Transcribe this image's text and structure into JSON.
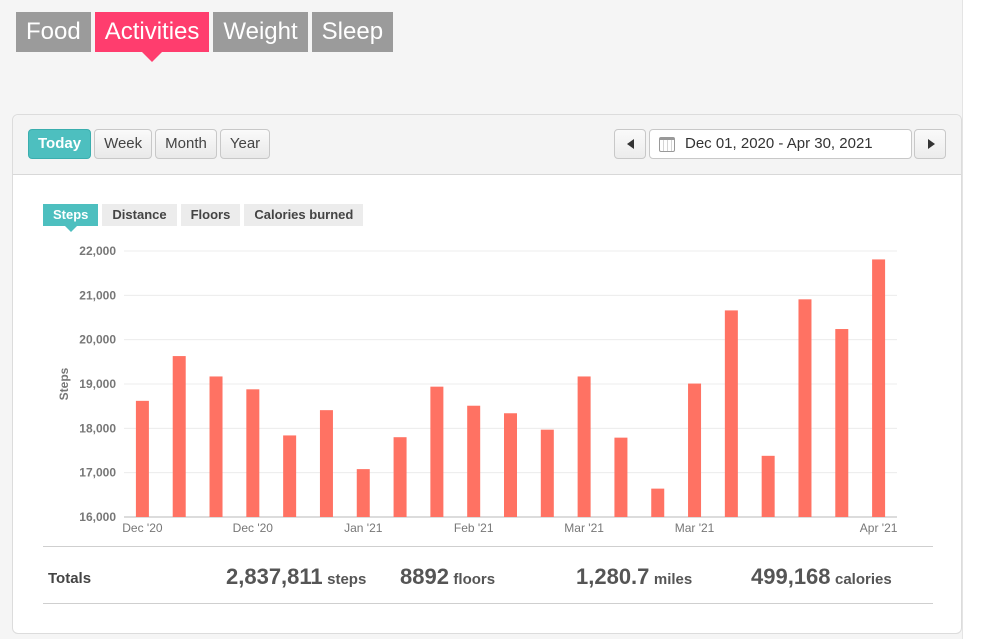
{
  "main_tabs": [
    {
      "label": "Food"
    },
    {
      "label": "Activities"
    },
    {
      "label": "Weight"
    },
    {
      "label": "Sleep"
    }
  ],
  "active_main_tab": "Activities",
  "periods": [
    {
      "label": "Today"
    },
    {
      "label": "Week"
    },
    {
      "label": "Month"
    },
    {
      "label": "Year"
    }
  ],
  "active_period": "Today",
  "date_range": {
    "text": "Dec 01, 2020 - Apr 30, 2021"
  },
  "metrics": [
    {
      "label": "Steps"
    },
    {
      "label": "Distance"
    },
    {
      "label": "Floors"
    },
    {
      "label": "Calories burned"
    }
  ],
  "active_metric": "Steps",
  "colors": {
    "bar": "#ff7263",
    "accent_pink": "#ff3d6e",
    "accent_teal": "#4dbfbf"
  },
  "chart_data": {
    "type": "bar",
    "ylabel": "Steps",
    "ylim": [
      16000,
      22000
    ],
    "yticks": [
      16000,
      17000,
      18000,
      19000,
      20000,
      21000,
      22000
    ],
    "ytick_labels": [
      "16,000",
      "17,000",
      "18,000",
      "19,000",
      "20,000",
      "21,000",
      "22,000"
    ],
    "values": [
      18620,
      19630,
      19170,
      18880,
      17840,
      18410,
      17080,
      17800,
      18940,
      18510,
      18340,
      17970,
      19170,
      17790,
      16640,
      19010,
      20660,
      17380,
      20910,
      20240,
      21810
    ],
    "x_tick_labels": [
      {
        "label": "Dec '20",
        "index": 0
      },
      {
        "label": "Dec '20",
        "index": 3
      },
      {
        "label": "Jan '21",
        "index": 6
      },
      {
        "label": "Feb '21",
        "index": 9
      },
      {
        "label": "Mar '21",
        "index": 12
      },
      {
        "label": "Mar '21",
        "index": 15
      },
      {
        "label": "Apr '21",
        "index": 20
      }
    ],
    "grid": true,
    "legend": "none"
  },
  "totals": {
    "label": "Totals",
    "steps": {
      "value": "2,837,811",
      "unit": "steps"
    },
    "floors": {
      "value": "8892",
      "unit": "floors"
    },
    "miles": {
      "value": "1,280.7",
      "unit": "miles"
    },
    "calories": {
      "value": "499,168",
      "unit": "calories"
    }
  }
}
